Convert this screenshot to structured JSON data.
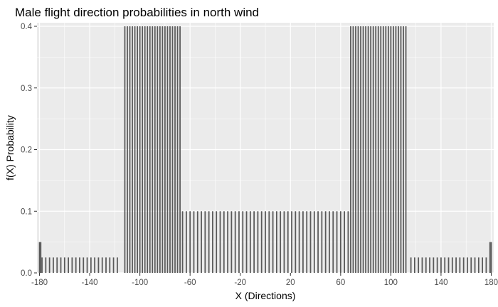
{
  "chart_data": {
    "type": "bar",
    "title": "Male flight direction probabilities in north wind",
    "xlabel": "X (Directions)",
    "ylabel": "f(X) Probability",
    "xlim": [
      -182,
      182
    ],
    "ylim": [
      0,
      0.4
    ],
    "grid": true,
    "x_ticks": [
      "-180",
      "-140",
      "-100",
      "-60",
      "-20",
      "20",
      "60",
      "100",
      "140",
      "180"
    ],
    "y_ticks": [
      "0.0",
      "0.1",
      "0.2",
      "0.3",
      "0.4"
    ],
    "bar_color": "#595959",
    "panel_color": "#ebebeb",
    "bar_width": 1,
    "segments": [
      {
        "from": -180,
        "to": -179,
        "step": 1,
        "value": 0.05
      },
      {
        "from": -178,
        "to": -116,
        "step": 3,
        "value": 0.025
      },
      {
        "from": -112,
        "to": -68,
        "step": 2,
        "value": 0.4
      },
      {
        "from": -66,
        "to": 66,
        "step": 3,
        "value": 0.1
      },
      {
        "from": 68,
        "to": 112,
        "step": 2,
        "value": 0.4
      },
      {
        "from": 116,
        "to": 178,
        "step": 3,
        "value": 0.025
      },
      {
        "from": 179,
        "to": 180,
        "step": 1,
        "value": 0.05
      }
    ]
  }
}
